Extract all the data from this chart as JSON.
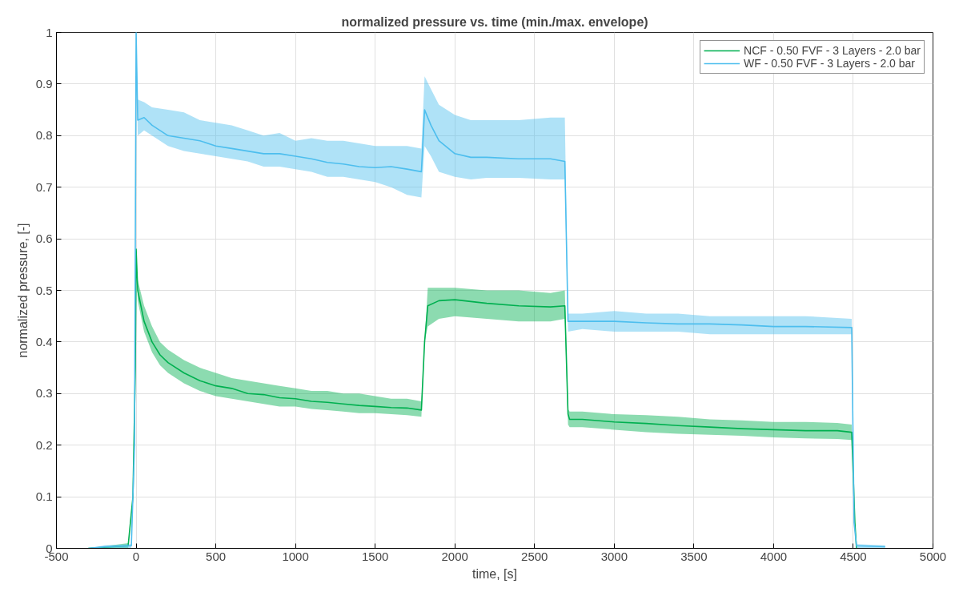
{
  "chart_data": {
    "type": "line",
    "title": "normalized pressure vs. time (min./max. envelope)",
    "xlabel": "time, [s]",
    "ylabel": "normalized pressure, [-]",
    "xlim": [
      -500,
      5000
    ],
    "ylim": [
      0,
      1
    ],
    "xticks": [
      -500,
      0,
      500,
      1000,
      1500,
      2000,
      2500,
      3000,
      3500,
      4000,
      4500,
      5000
    ],
    "yticks": [
      0,
      0.1,
      0.2,
      0.3,
      0.4,
      0.5,
      0.6,
      0.7,
      0.8,
      0.9,
      1
    ],
    "grid": true,
    "legend": "top right",
    "marker": "none",
    "line_style": "solid",
    "series": [
      {
        "name": "NCF - 0.50 FVF - 3 Layers - 2.0 bar",
        "color": "#00b050",
        "x": [
          -300,
          -50,
          -20,
          -5,
          0,
          10,
          50,
          100,
          150,
          200,
          300,
          400,
          500,
          600,
          700,
          800,
          900,
          1000,
          1100,
          1200,
          1300,
          1400,
          1500,
          1600,
          1700,
          1790,
          1810,
          1830,
          1900,
          2000,
          2200,
          2400,
          2600,
          2690,
          2710,
          2720,
          2800,
          3000,
          3200,
          3400,
          3600,
          3800,
          4000,
          4200,
          4400,
          4490,
          4510,
          4520
        ],
        "values": [
          0,
          0.005,
          0.1,
          0.35,
          0.58,
          0.5,
          0.44,
          0.4,
          0.375,
          0.36,
          0.34,
          0.325,
          0.315,
          0.31,
          0.3,
          0.298,
          0.292,
          0.29,
          0.285,
          0.283,
          0.28,
          0.277,
          0.275,
          0.273,
          0.272,
          0.268,
          0.4,
          0.47,
          0.48,
          0.482,
          0.475,
          0.47,
          0.468,
          0.47,
          0.26,
          0.25,
          0.25,
          0.245,
          0.242,
          0.238,
          0.235,
          0.232,
          0.23,
          0.228,
          0.228,
          0.225,
          0.05,
          0
        ],
        "lower": [
          0,
          0,
          0.1,
          0.35,
          0.58,
          0.48,
          0.42,
          0.38,
          0.355,
          0.34,
          0.32,
          0.305,
          0.295,
          0.29,
          0.285,
          0.28,
          0.275,
          0.275,
          0.27,
          0.268,
          0.265,
          0.262,
          0.262,
          0.26,
          0.258,
          0.255,
          0.4,
          0.43,
          0.445,
          0.45,
          0.445,
          0.44,
          0.44,
          0.445,
          0.24,
          0.235,
          0.235,
          0.23,
          0.225,
          0.222,
          0.22,
          0.218,
          0.215,
          0.213,
          0.212,
          0.21,
          0.05,
          0
        ],
        "upper": [
          0,
          0.01,
          0.1,
          0.35,
          0.58,
          0.52,
          0.47,
          0.43,
          0.4,
          0.385,
          0.365,
          0.35,
          0.34,
          0.33,
          0.325,
          0.32,
          0.315,
          0.31,
          0.305,
          0.305,
          0.3,
          0.3,
          0.295,
          0.29,
          0.29,
          0.285,
          0.4,
          0.505,
          0.505,
          0.505,
          0.5,
          0.5,
          0.495,
          0.5,
          0.27,
          0.265,
          0.265,
          0.26,
          0.258,
          0.255,
          0.25,
          0.248,
          0.245,
          0.245,
          0.243,
          0.24,
          0.05,
          0.005
        ]
      },
      {
        "name": "WF - 0.50 FVF - 3 Layers - 2.0 bar",
        "color": "#4dbeee",
        "x": [
          -300,
          -200,
          -30,
          -10,
          0,
          10,
          50,
          100,
          200,
          300,
          400,
          500,
          600,
          700,
          800,
          900,
          1000,
          1100,
          1200,
          1300,
          1400,
          1500,
          1600,
          1700,
          1790,
          1810,
          1850,
          1900,
          2000,
          2100,
          2200,
          2400,
          2600,
          2690,
          2710,
          2800,
          3000,
          3200,
          3400,
          3600,
          3800,
          4000,
          4200,
          4490,
          4505,
          4520,
          4700
        ],
        "values": [
          0,
          0.003,
          0.005,
          0.2,
          1,
          0.83,
          0.835,
          0.82,
          0.8,
          0.795,
          0.79,
          0.78,
          0.775,
          0.77,
          0.765,
          0.765,
          0.76,
          0.755,
          0.748,
          0.745,
          0.74,
          0.738,
          0.74,
          0.735,
          0.73,
          0.85,
          0.82,
          0.79,
          0.765,
          0.758,
          0.758,
          0.755,
          0.755,
          0.75,
          0.44,
          0.44,
          0.44,
          0.437,
          0.435,
          0.435,
          0.433,
          0.43,
          0.43,
          0.428,
          0.05,
          0.005,
          0.003
        ],
        "lower": [
          0,
          0,
          0,
          0.2,
          1,
          0.8,
          0.81,
          0.8,
          0.78,
          0.77,
          0.765,
          0.76,
          0.755,
          0.75,
          0.74,
          0.74,
          0.735,
          0.73,
          0.72,
          0.72,
          0.715,
          0.71,
          0.7,
          0.685,
          0.68,
          0.78,
          0.76,
          0.73,
          0.72,
          0.715,
          0.718,
          0.718,
          0.715,
          0.715,
          0.42,
          0.425,
          0.42,
          0.42,
          0.42,
          0.415,
          0.415,
          0.415,
          0.415,
          0.415,
          0.05,
          0,
          0
        ],
        "upper": [
          0,
          0.006,
          0.008,
          0.2,
          1,
          0.87,
          0.865,
          0.855,
          0.85,
          0.845,
          0.83,
          0.825,
          0.82,
          0.81,
          0.8,
          0.805,
          0.79,
          0.795,
          0.79,
          0.79,
          0.785,
          0.78,
          0.78,
          0.78,
          0.775,
          0.915,
          0.89,
          0.86,
          0.84,
          0.83,
          0.83,
          0.83,
          0.835,
          0.835,
          0.455,
          0.455,
          0.46,
          0.455,
          0.455,
          0.45,
          0.45,
          0.45,
          0.45,
          0.445,
          0.05,
          0.008,
          0.006
        ]
      }
    ]
  }
}
